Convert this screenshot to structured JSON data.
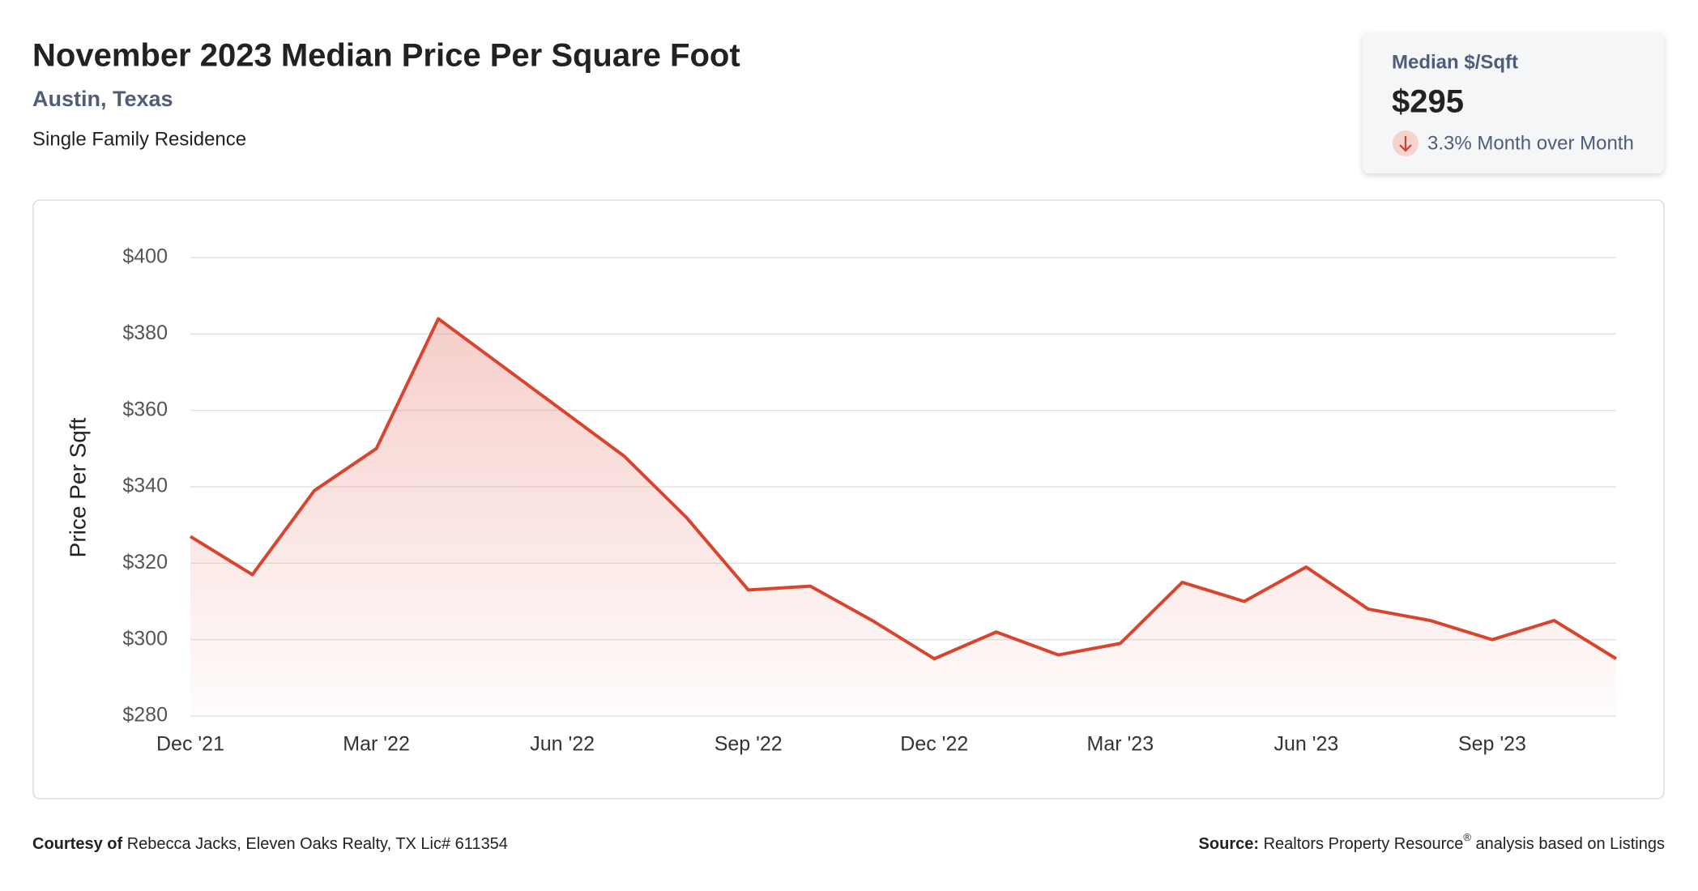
{
  "header": {
    "title": "November 2023 Median Price Per Square Foot",
    "location": "Austin, Texas",
    "property_type": "Single Family Residence"
  },
  "summary": {
    "label": "Median $/Sqft",
    "value": "$295",
    "change": "3.3% Month over Month"
  },
  "chart_data": {
    "type": "line",
    "categories": [
      "Dec '21",
      null,
      null,
      "Mar '22",
      null,
      null,
      "Jun '22",
      null,
      null,
      "Sep '22",
      null,
      null,
      "Dec '22",
      null,
      null,
      "Mar '23",
      null,
      null,
      "Jun '23",
      null,
      null,
      "Sep '23",
      null,
      null
    ],
    "series": [
      {
        "name": "Price Per Sqft",
        "color": "#d9442f",
        "values": [
          327,
          317,
          339,
          350,
          384,
          372,
          360,
          348,
          332,
          313,
          314,
          305,
          295,
          302,
          296,
          299,
          315,
          310,
          319,
          308,
          305,
          300,
          305,
          295
        ]
      }
    ],
    "y_label": "Price Per Sqft",
    "ylim": [
      280,
      400
    ],
    "yticks": [
      {
        "value": 280,
        "label": "$280"
      },
      {
        "value": 300,
        "label": "$300"
      },
      {
        "value": 320,
        "label": "$320"
      },
      {
        "value": 340,
        "label": "$340"
      },
      {
        "value": 360,
        "label": "$360"
      },
      {
        "value": 380,
        "label": "$380"
      },
      {
        "value": 400,
        "label": "$400"
      }
    ],
    "grid": true
  },
  "footer": {
    "courtesy_label": "Courtesy of",
    "courtesy": "Rebecca Jacks, Eleven Oaks Realty, TX Lic# 611354",
    "source_label": "Source:",
    "source": "Realtors Property Resource",
    "source_mark": "®",
    "source_rest": " analysis based on Listings"
  }
}
